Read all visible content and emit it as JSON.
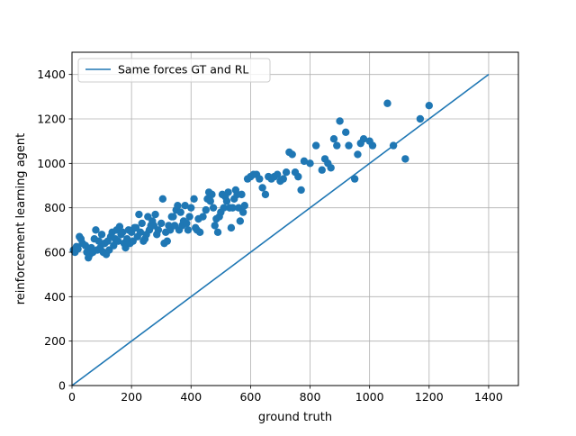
{
  "chart_data": {
    "type": "scatter",
    "title": "",
    "xlabel": "ground truth",
    "ylabel": "reinforcement learning agent",
    "xlim": [
      0,
      1500
    ],
    "ylim": [
      0,
      1500
    ],
    "xticks": [
      0,
      200,
      400,
      600,
      800,
      1000,
      1200,
      1400
    ],
    "yticks": [
      0,
      200,
      400,
      600,
      800,
      1000,
      1200,
      1400
    ],
    "grid": true,
    "legend": {
      "position": "top-left",
      "entries": [
        "Same forces GT and RL"
      ]
    },
    "colors": {
      "series": "#1f77b4"
    },
    "series": [
      {
        "name": "Same forces GT and RL",
        "kind": "line",
        "x": [
          0,
          1400
        ],
        "y": [
          0,
          1400
        ]
      },
      {
        "kind": "scatter",
        "x": [
          5,
          10,
          15,
          20,
          25,
          30,
          35,
          45,
          50,
          55,
          60,
          65,
          70,
          75,
          80,
          85,
          90,
          95,
          100,
          105,
          110,
          115,
          120,
          125,
          130,
          135,
          140,
          145,
          150,
          155,
          160,
          165,
          170,
          175,
          180,
          185,
          190,
          195,
          200,
          205,
          210,
          215,
          220,
          225,
          230,
          235,
          240,
          245,
          250,
          255,
          260,
          265,
          270,
          275,
          280,
          285,
          290,
          300,
          305,
          310,
          315,
          320,
          325,
          330,
          335,
          340,
          345,
          350,
          355,
          360,
          365,
          370,
          375,
          380,
          385,
          390,
          395,
          400,
          410,
          415,
          420,
          425,
          430,
          440,
          450,
          455,
          460,
          465,
          470,
          475,
          480,
          485,
          490,
          495,
          500,
          505,
          510,
          515,
          520,
          525,
          530,
          535,
          540,
          545,
          550,
          555,
          560,
          565,
          570,
          575,
          580,
          590,
          600,
          610,
          620,
          630,
          640,
          650,
          660,
          670,
          680,
          690,
          700,
          710,
          720,
          730,
          740,
          750,
          760,
          770,
          780,
          800,
          820,
          840,
          850,
          860,
          870,
          880,
          890,
          900,
          920,
          930,
          950,
          960,
          970,
          980,
          1000,
          1010,
          1060,
          1080,
          1120,
          1170,
          1200
        ],
        "y": [
          610,
          600,
          625,
          615,
          670,
          660,
          640,
          630,
          600,
          575,
          590,
          620,
          600,
          660,
          700,
          610,
          650,
          620,
          680,
          600,
          640,
          590,
          650,
          610,
          670,
          690,
          630,
          660,
          700,
          650,
          715,
          680,
          690,
          640,
          620,
          660,
          700,
          640,
          690,
          650,
          710,
          710,
          670,
          770,
          690,
          730,
          650,
          660,
          680,
          760,
          700,
          720,
          740,
          720,
          770,
          680,
          700,
          730,
          840,
          640,
          690,
          650,
          720,
          700,
          760,
          760,
          720,
          790,
          810,
          700,
          780,
          720,
          740,
          810,
          730,
          700,
          760,
          800,
          840,
          710,
          700,
          750,
          690,
          760,
          790,
          840,
          870,
          830,
          860,
          800,
          720,
          750,
          690,
          760,
          780,
          860,
          800,
          850,
          830,
          870,
          800,
          710,
          800,
          840,
          880,
          860,
          800,
          740,
          860,
          780,
          810,
          930,
          940,
          950,
          950,
          930,
          890,
          860,
          940,
          930,
          940,
          950,
          920,
          930,
          960,
          1050,
          1040,
          960,
          940,
          880,
          1010,
          1000,
          1080,
          970,
          1020,
          1000,
          980,
          1110,
          1080,
          1190,
          1140,
          1080,
          930,
          1040,
          1090,
          1110,
          1100,
          1080,
          1270,
          1080,
          1020,
          1200,
          1260
        ]
      }
    ]
  }
}
